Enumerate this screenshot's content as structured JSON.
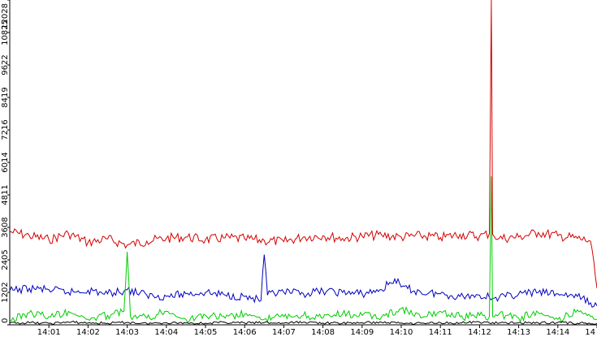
{
  "chart_data": {
    "type": "line",
    "title": "",
    "xlabel": "",
    "ylabel": "",
    "ylim": [
      0,
      12028
    ],
    "xlim": [
      "14:00:00",
      "14:15:00"
    ],
    "grid": false,
    "legend": "none",
    "y_ticks": [
      "0",
      "1202",
      "2405",
      "3608",
      "4811",
      "6014",
      "7216",
      "8419",
      "9622",
      "10825",
      "12028"
    ],
    "x_ticks": [
      "14:01",
      "14:02",
      "14:03",
      "14:04",
      "14:05",
      "14:06",
      "14:07",
      "14:08",
      "14:09",
      "14:10",
      "14:11",
      "14:12",
      "14:13",
      "14:14",
      "14"
    ],
    "series": [
      {
        "color": "#d40000",
        "x": [
          "14:00:00",
          "14:00:30",
          "14:01:00",
          "14:01:30",
          "14:02:00",
          "14:02:30",
          "14:03:00",
          "14:03:30",
          "14:04:00",
          "14:04:30",
          "14:05:00",
          "14:05:30",
          "14:06:00",
          "14:06:30",
          "14:07:00",
          "14:07:30",
          "14:08:00",
          "14:08:30",
          "14:09:00",
          "14:09:30",
          "14:10:00",
          "14:10:30",
          "14:11:00",
          "14:11:30",
          "14:12:00",
          "14:12:15",
          "14:12:18",
          "14:12:20",
          "14:12:30",
          "14:13:00",
          "14:13:30",
          "14:14:00",
          "14:14:30",
          "14:14:50",
          "14:15:00"
        ],
        "values": [
          3450,
          3300,
          3150,
          3380,
          3050,
          3180,
          2950,
          3100,
          3200,
          3250,
          3150,
          3220,
          3180,
          3120,
          3080,
          3250,
          3300,
          3200,
          3280,
          3320,
          3250,
          3300,
          3230,
          3350,
          3280,
          3380,
          12028,
          3350,
          3200,
          3250,
          3420,
          3300,
          3200,
          3100,
          1350
        ]
      },
      {
        "color": "#0000c0",
        "x": [
          "14:00:00",
          "14:00:30",
          "14:01:00",
          "14:01:30",
          "14:02:00",
          "14:02:30",
          "14:03:00",
          "14:03:30",
          "14:04:00",
          "14:04:30",
          "14:05:00",
          "14:05:30",
          "14:06:00",
          "14:06:25",
          "14:06:30",
          "14:06:35",
          "14:07:00",
          "14:07:30",
          "14:08:00",
          "14:08:30",
          "14:09:00",
          "14:09:30",
          "14:09:50",
          "14:10:00",
          "14:10:30",
          "14:11:00",
          "14:11:30",
          "14:12:00",
          "14:12:30",
          "14:13:00",
          "14:13:30",
          "14:14:00",
          "14:14:30",
          "14:15:00"
        ],
        "values": [
          1250,
          1350,
          1300,
          1200,
          1280,
          1150,
          1300,
          1100,
          1050,
          1150,
          1200,
          1100,
          1050,
          900,
          2600,
          1100,
          1200,
          1150,
          1250,
          1200,
          1150,
          1300,
          1700,
          1400,
          1200,
          1150,
          1050,
          1100,
          1000,
          1150,
          1200,
          1150,
          1050,
          700
        ]
      },
      {
        "color": "#00cc00",
        "x": [
          "14:00:00",
          "14:00:30",
          "14:01:00",
          "14:01:30",
          "14:02:00",
          "14:02:30",
          "14:02:55",
          "14:03:00",
          "14:03:05",
          "14:03:30",
          "14:04:00",
          "14:04:30",
          "14:05:00",
          "14:05:30",
          "14:06:00",
          "14:06:30",
          "14:07:00",
          "14:07:30",
          "14:08:00",
          "14:08:30",
          "14:09:00",
          "14:09:30",
          "14:10:00",
          "14:10:30",
          "14:11:00",
          "14:11:30",
          "14:12:00",
          "14:12:15",
          "14:12:18",
          "14:12:20",
          "14:12:30",
          "14:13:00",
          "14:13:30",
          "14:14:00",
          "14:14:30",
          "14:15:00"
        ],
        "values": [
          150,
          450,
          300,
          500,
          200,
          350,
          500,
          2700,
          300,
          250,
          500,
          200,
          350,
          250,
          400,
          200,
          300,
          350,
          250,
          400,
          350,
          300,
          600,
          250,
          500,
          300,
          350,
          300,
          5500,
          300,
          400,
          250,
          450,
          200,
          550,
          200
        ]
      },
      {
        "color": "#000000",
        "x": [
          "14:00:00",
          "14:00:30",
          "14:01:00",
          "14:01:30",
          "14:02:00",
          "14:02:30",
          "14:03:00",
          "14:03:30",
          "14:04:00",
          "14:04:30",
          "14:05:00",
          "14:05:30",
          "14:06:00",
          "14:06:30",
          "14:07:00",
          "14:07:30",
          "14:08:00",
          "14:08:30",
          "14:09:00",
          "14:09:30",
          "14:10:00",
          "14:10:30",
          "14:11:00",
          "14:11:30",
          "14:12:00",
          "14:12:30",
          "14:13:00",
          "14:13:30",
          "14:14:00",
          "14:14:30",
          "14:15:00"
        ],
        "values": [
          60,
          80,
          50,
          100,
          70,
          60,
          90,
          50,
          80,
          70,
          60,
          90,
          70,
          80,
          60,
          100,
          70,
          60,
          80,
          90,
          70,
          60,
          80,
          70,
          100,
          60,
          80,
          70,
          90,
          60,
          50
        ]
      }
    ]
  }
}
